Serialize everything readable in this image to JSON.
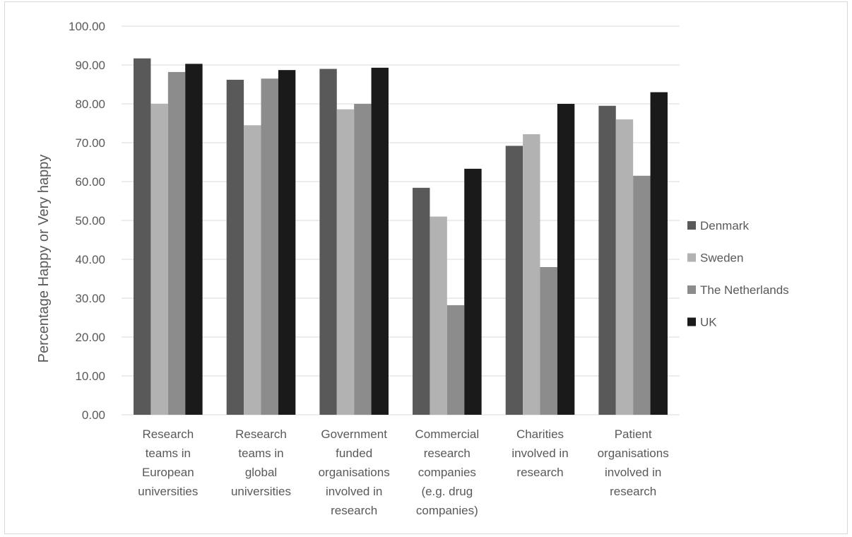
{
  "chart_data": {
    "type": "bar",
    "title": "",
    "xlabel": "",
    "ylabel": "Percentage Happy or Very happy",
    "ylim": [
      0,
      100
    ],
    "yticks": [
      "0.00",
      "10.00",
      "20.00",
      "30.00",
      "40.00",
      "50.00",
      "60.00",
      "70.00",
      "80.00",
      "90.00",
      "100.00"
    ],
    "grid": true,
    "legend_position": "right",
    "categories": [
      [
        "Research",
        "teams in",
        "European",
        "universities"
      ],
      [
        "Research",
        "teams in",
        "global",
        "universities"
      ],
      [
        "Government",
        "funded",
        "organisations",
        "involved in",
        "research"
      ],
      [
        "Commercial",
        "research",
        "companies",
        "(e.g. drug",
        "companies)"
      ],
      [
        "Charities",
        "involved in",
        "research"
      ],
      [
        "Patient",
        "organisations",
        "involved in",
        "research"
      ]
    ],
    "series": [
      {
        "name": "Denmark",
        "color": "#595959",
        "values": [
          91.7,
          86.2,
          89.0,
          58.4,
          69.2,
          79.5
        ]
      },
      {
        "name": "Sweden",
        "color": "#b2b2b2",
        "values": [
          80.0,
          74.5,
          78.6,
          51.0,
          72.2,
          76.0
        ]
      },
      {
        "name": "The Netherlands",
        "color": "#8c8c8c",
        "values": [
          88.2,
          86.5,
          80.0,
          28.2,
          38.0,
          61.5
        ]
      },
      {
        "name": "UK",
        "color": "#1a1a1a",
        "values": [
          90.3,
          88.7,
          89.3,
          63.3,
          80.0,
          83.0
        ]
      }
    ]
  }
}
